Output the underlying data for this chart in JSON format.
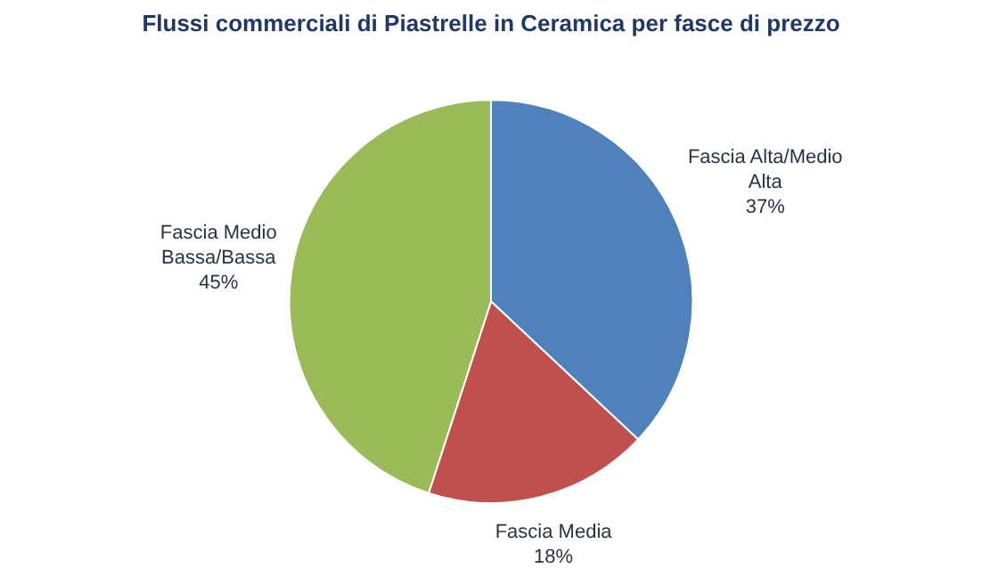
{
  "chart_data": {
    "type": "pie",
    "title": "Flussi commerciali di Piastrelle in Ceramica per fasce di prezzo",
    "categories": [
      "Fascia Alta/Medio Alta",
      "Fascia Media",
      "Fascia Medio Bassa/Bassa"
    ],
    "values": [
      37,
      18,
      45
    ],
    "colors": [
      "#4f81bd",
      "#c0504d",
      "#9bbb59"
    ],
    "value_labels": [
      "37%",
      "18%",
      "45%"
    ],
    "legend": false
  }
}
